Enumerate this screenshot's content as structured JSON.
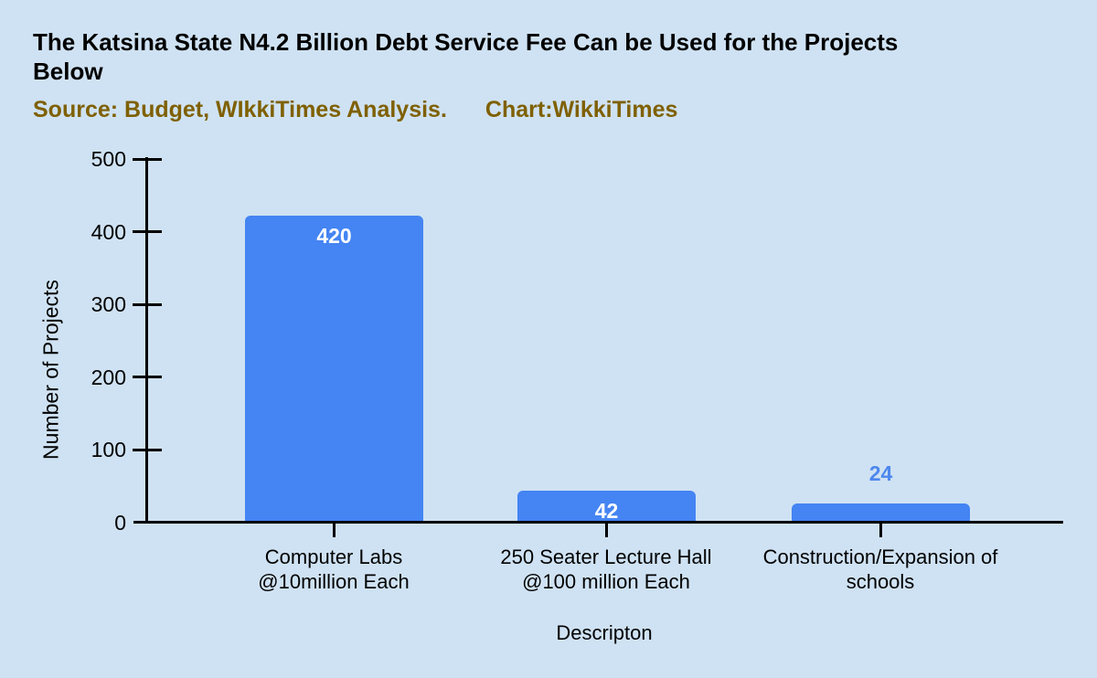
{
  "header": {
    "title": "The Katsina State N4.2 Billion Debt Service Fee Can be Used for the Projects\nBelow",
    "source_note": "Source: Budget, WIkkiTimes Analysis.",
    "chart_credit": "Chart:WikkiTimes"
  },
  "colors": {
    "background": "#cfe2f3",
    "bar": "#4484f3",
    "subtitle_text": "#7f6000",
    "bar_label_inside": "#ffffff",
    "bar_label_outside": "#4d87ee",
    "axis": "#000000"
  },
  "chart_data": {
    "type": "bar",
    "title": "The Katsina State N4.2 Billion Debt Service Fee Can be Used for the Projects Below",
    "subtitle": "Source: Budget, WIkkiTimes Analysis.    Chart:WikkiTimes",
    "categories": [
      "Computer Labs\n@10million Each",
      "250 Seater Lecture Hall\n@100 million Each",
      "Construction/Expansion of\nschools"
    ],
    "values": [
      420,
      42,
      24
    ],
    "bar_labels": [
      "420",
      "42",
      "24"
    ],
    "xlabel": "Descripton",
    "ylabel": "Number of Projects",
    "ylim": [
      0,
      500
    ],
    "yticks": [
      0,
      100,
      200,
      300,
      400,
      500
    ],
    "grid": false,
    "legend": false
  }
}
